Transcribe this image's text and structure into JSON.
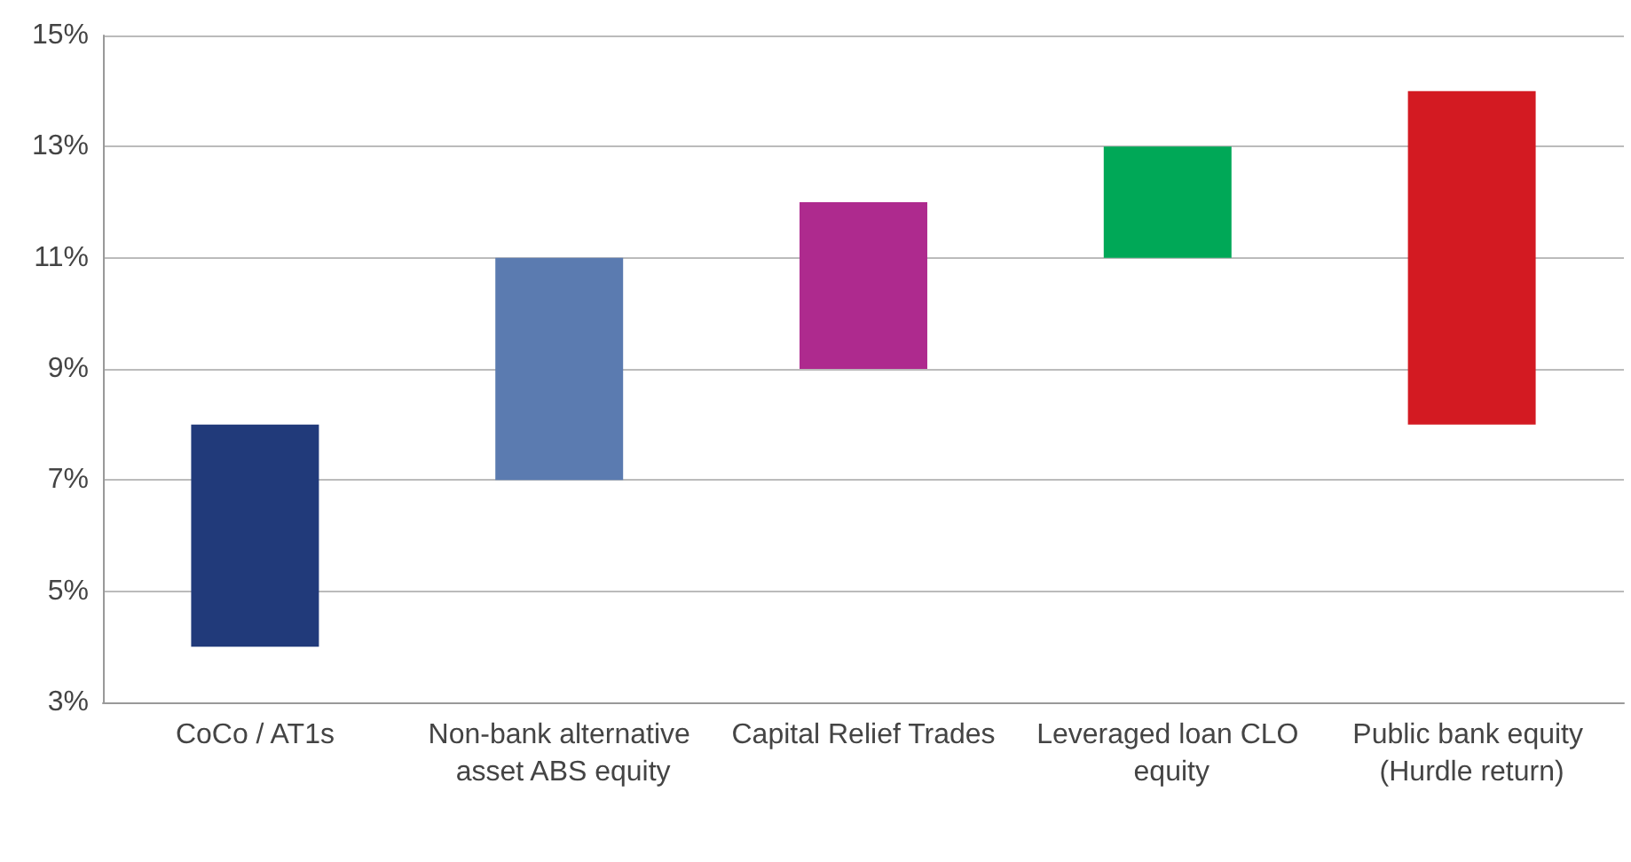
{
  "chart_data": {
    "type": "bar",
    "categories": [
      "CoCo / AT1s",
      "Non-bank alternative asset ABS equity",
      "Capital Relief Trades",
      "Leveraged loan CLO equity",
      "Public bank equity (Hurdle return)"
    ],
    "base": [
      4,
      7,
      9,
      11,
      8
    ],
    "values": [
      4,
      4,
      3,
      2,
      6
    ],
    "colors": [
      "#213a7a",
      "#5b7bb0",
      "#ae2a8e",
      "#00a857",
      "#d31a22"
    ],
    "ylim": [
      3,
      15
    ],
    "yticks": [
      {
        "value": 3,
        "label": "3%"
      },
      {
        "value": 5,
        "label": "5%"
      },
      {
        "value": 7,
        "label": "7%"
      },
      {
        "value": 9,
        "label": "9%"
      },
      {
        "value": 11,
        "label": "11%"
      },
      {
        "value": 13,
        "label": "13%"
      },
      {
        "value": 15,
        "label": "15%"
      }
    ],
    "grid": "y"
  }
}
